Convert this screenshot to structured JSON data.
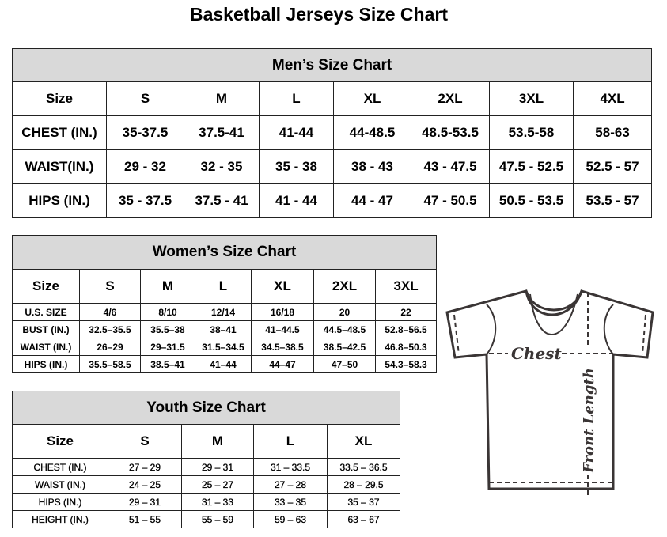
{
  "title": "Basketball Jerseys Size Chart",
  "men": {
    "caption": "Men’s Size Chart",
    "rows": [
      [
        "Size",
        "S",
        "M",
        "L",
        "XL",
        "2XL",
        "3XL",
        "4XL"
      ],
      [
        "CHEST (IN.)",
        "35-37.5",
        "37.5-41",
        "41-44",
        "44-48.5",
        "48.5-53.5",
        "53.5-58",
        "58-63"
      ],
      [
        "WAIST(IN.)",
        "29 - 32",
        "32 - 35",
        "35 - 38",
        "38 - 43",
        "43 - 47.5",
        "47.5 - 52.5",
        "52.5 - 57"
      ],
      [
        "HIPS (IN.)",
        "35 - 37.5",
        "37.5 - 41",
        "41 - 44",
        "44 - 47",
        "47 - 50.5",
        "50.5 - 53.5",
        "53.5 - 57"
      ]
    ]
  },
  "women": {
    "caption": "Women’s Size Chart",
    "rows": [
      [
        "Size",
        "S",
        "M",
        "L",
        "XL",
        "2XL",
        "3XL"
      ],
      [
        "U.S.  SIZE",
        "4/6",
        "8/10",
        "12/14",
        "16/18",
        "20",
        "22"
      ],
      [
        "BUST  (IN.)",
        "32.5–35.5",
        "35.5–38",
        "38–41",
        "41–44.5",
        "44.5–48.5",
        "52.8–56.5"
      ],
      [
        "WAIST  (IN.)",
        "26–29",
        "29–31.5",
        "31.5–34.5",
        "34.5–38.5",
        "38.5–42.5",
        "46.8–50.3"
      ],
      [
        "HIPS  (IN.)",
        "35.5–58.5",
        "38.5–41",
        "41–44",
        "44–47",
        "47–50",
        "54.3–58.3"
      ]
    ]
  },
  "youth": {
    "caption": "Youth Size Chart",
    "rows": [
      [
        "Size",
        "S",
        "M",
        "L",
        "XL"
      ],
      [
        "CHEST  (IN.)",
        "27  –  29",
        "29  –  31",
        "31  –  33.5",
        "33.5  –  36.5"
      ],
      [
        "WAIST  (IN.)",
        "24  –  25",
        "25  –  27",
        "27  –  28",
        "28  –  29.5"
      ],
      [
        "HIPS  (IN.)",
        "29  –  31",
        "31  –  33",
        "33  –  35",
        "35  –  37"
      ],
      [
        "HEIGHT  (IN.)",
        "51  –  55",
        "55  –  59",
        "59  –  63",
        "63  –  67"
      ]
    ]
  },
  "diagram": {
    "chest_label": "Chest",
    "length_label": "Front Length"
  },
  "colors": {
    "header_bg": "#d9d9d9",
    "diagram_stroke": "#3a3535"
  }
}
